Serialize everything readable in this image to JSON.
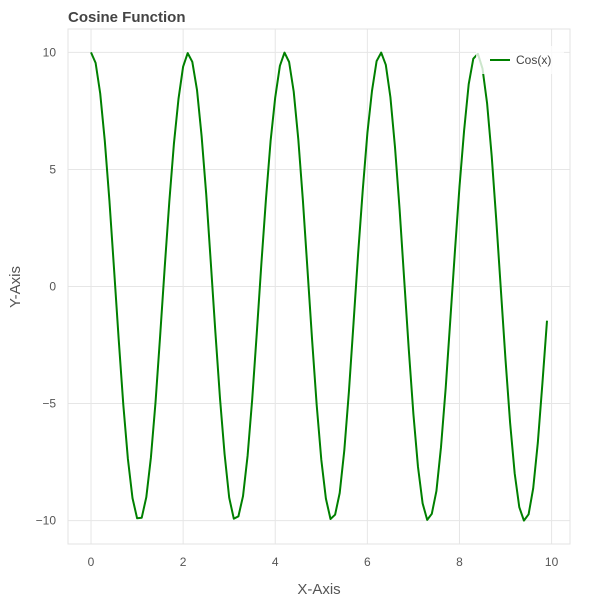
{
  "chart_data": {
    "type": "line",
    "title": "Cosine Function",
    "xlabel": "X-Axis",
    "ylabel": "Y-Axis",
    "xlim": [
      -0.5,
      10.4
    ],
    "ylim": [
      -11,
      11
    ],
    "xticks": [
      0,
      2,
      4,
      6,
      8,
      10
    ],
    "yticks": [
      10,
      5,
      0,
      -5,
      -10
    ],
    "ytick_labels": [
      "10",
      "5",
      "0",
      "−5",
      "−10"
    ],
    "xtick_labels": [
      "0",
      "2",
      "4",
      "6",
      "8",
      "10"
    ],
    "grid": true,
    "legend": {
      "position": "top-right",
      "entries": [
        "Cos(x)"
      ]
    },
    "series": [
      {
        "name": "Cos(x)",
        "color": "#008000",
        "x": [
          0.0,
          0.1,
          0.2,
          0.3,
          0.4,
          0.5,
          0.6,
          0.7,
          0.8,
          0.9,
          1.0,
          1.1,
          1.2,
          1.3,
          1.4,
          1.5,
          1.6,
          1.7,
          1.8,
          1.9,
          2.0,
          2.1,
          2.2,
          2.3,
          2.4,
          2.5,
          2.6,
          2.7,
          2.8,
          2.9,
          3.0,
          3.1,
          3.2,
          3.3,
          3.4,
          3.5,
          3.6,
          3.7,
          3.8,
          3.9,
          4.0,
          4.1,
          4.2,
          4.3,
          4.4,
          4.5,
          4.6,
          4.7,
          4.8,
          4.9,
          5.0,
          5.1,
          5.2,
          5.3,
          5.4,
          5.5,
          5.6,
          5.7,
          5.8,
          5.9,
          6.0,
          6.1,
          6.2,
          6.3,
          6.4,
          6.5,
          6.6,
          6.7,
          6.8,
          6.9,
          7.0,
          7.1,
          7.2,
          7.3,
          7.4,
          7.5,
          7.6,
          7.7,
          7.8,
          7.9,
          8.0,
          8.1,
          8.2,
          8.3,
          8.4,
          8.5,
          8.6,
          8.7,
          8.8,
          8.9,
          9.0,
          9.1,
          9.2,
          9.3,
          9.4,
          9.5,
          9.6,
          9.7,
          9.8,
          9.9
        ],
        "y": [
          10.0,
          9.55,
          8.25,
          6.22,
          3.68,
          0.71,
          -2.26,
          -5.05,
          -7.37,
          -9.04,
          -9.9,
          -9.88,
          -9.0,
          -7.31,
          -4.96,
          -2.13,
          0.81,
          3.62,
          6.09,
          8.02,
          9.39,
          9.97,
          9.6,
          8.4,
          6.43,
          3.95,
          1.02,
          -1.96,
          -4.78,
          -7.17,
          -9.02,
          -9.92,
          -9.82,
          -8.96,
          -7.23,
          -4.82,
          -1.98,
          0.99,
          3.76,
          6.22,
          8.07,
          9.43,
          9.99,
          9.59,
          8.33,
          6.29,
          3.68,
          0.71,
          -2.28,
          -5.07,
          -7.4,
          -9.06,
          -9.93,
          -9.75,
          -8.82,
          -7.0,
          -4.5,
          -1.58,
          1.39,
          4.15,
          6.56,
          8.36,
          9.63,
          9.99,
          9.47,
          8.09,
          5.95,
          3.3,
          0.29,
          -2.7,
          -5.45,
          -7.71,
          -9.26,
          -9.97,
          -9.71,
          -8.74,
          -6.86,
          -4.33,
          -1.43,
          1.49,
          4.27,
          6.66,
          8.64,
          9.73,
          9.94,
          9.31,
          7.82,
          5.57,
          2.82,
          -0.16,
          -3.12,
          -5.82,
          -7.99,
          -9.43,
          -10.0,
          -9.73,
          -8.62,
          -6.68,
          -4.14,
          -1.46
        ]
      }
    ]
  }
}
